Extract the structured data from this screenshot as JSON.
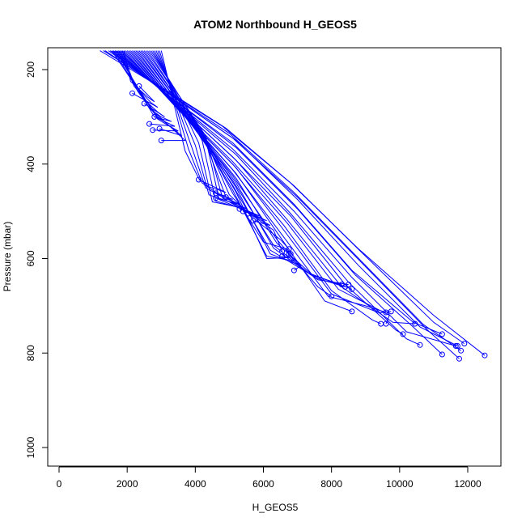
{
  "chart_data": {
    "type": "line",
    "title": "ATOM2 Northbound H_GEOS5",
    "xlabel": "H_GEOS5",
    "ylabel": "Pressure (mbar)",
    "xlim": [
      -300,
      13000
    ],
    "ylim": [
      1035,
      160
    ],
    "y_reversed": true,
    "x_ticks": [
      0,
      2000,
      4000,
      6000,
      8000,
      10000,
      12000
    ],
    "y_ticks": [
      200,
      400,
      600,
      800,
      1000
    ],
    "x_tick_labels": [
      "0",
      "2000",
      "4000",
      "6000",
      "8000",
      "10000",
      "12000"
    ],
    "y_tick_labels": [
      "200",
      "400",
      "600",
      "800",
      "1000"
    ],
    "grid": false,
    "legend": "none",
    "line_color": "#0000ff",
    "marker": "open-circle",
    "series": [
      {
        "x": [
          1200,
          2800,
          4800,
          6800,
          8800,
          11000,
          12500
        ],
        "y": [
          160,
          230,
          320,
          440,
          580,
          720,
          805
        ]
      },
      {
        "x": [
          1300,
          2900,
          4900,
          6900,
          8900,
          11000,
          11900
        ],
        "y": [
          160,
          232,
          324,
          446,
          588,
          735,
          780
        ]
      },
      {
        "x": [
          1350,
          3000,
          5000,
          6900,
          8800,
          10700,
          11800
        ],
        "y": [
          160,
          240,
          335,
          460,
          600,
          740,
          795
        ]
      },
      {
        "x": [
          1450,
          3100,
          5100,
          7000,
          8900,
          10800,
          11750
        ],
        "y": [
          160,
          245,
          345,
          470,
          610,
          750,
          812
        ]
      },
      {
        "x": [
          1500,
          3200,
          5200,
          7000,
          8800,
          10600,
          11700
        ],
        "y": [
          160,
          250,
          350,
          475,
          615,
          745,
          785
        ]
      },
      {
        "x": [
          1550,
          3200,
          5100,
          6900,
          8600,
          10400,
          11250
        ],
        "y": [
          160,
          255,
          355,
          485,
          625,
          735,
          760
        ]
      },
      {
        "x": [
          1600,
          3300,
          5200,
          7000,
          8700,
          10400,
          11250
        ],
        "y": [
          160,
          260,
          365,
          495,
          635,
          745,
          803
        ]
      },
      {
        "x": [
          1650,
          3300,
          5100,
          6900,
          8600,
          10200,
          11650
        ],
        "y": [
          160,
          262,
          368,
          500,
          640,
          755,
          785
        ]
      },
      {
        "x": [
          1700,
          3400,
          5200,
          6800,
          8500,
          10200,
          10600
        ],
        "y": [
          160,
          270,
          380,
          505,
          650,
          770,
          783
        ]
      },
      {
        "x": [
          1750,
          3400,
          5100,
          6800,
          8400,
          9900,
          10100
        ],
        "y": [
          160,
          272,
          385,
          510,
          655,
          752,
          760
        ]
      },
      {
        "x": [
          1800,
          3500,
          5200,
          6700,
          8300,
          9800,
          10450
        ],
        "y": [
          160,
          278,
          392,
          518,
          660,
          735,
          738
        ]
      },
      {
        "x": [
          1850,
          3500,
          5100,
          6700,
          8200,
          9700,
          9600
        ],
        "y": [
          160,
          282,
          395,
          525,
          665,
          720,
          738
        ]
      },
      {
        "x": [
          1900,
          3500,
          5100,
          6600,
          8000,
          9200,
          9450
        ],
        "y": [
          160,
          285,
          400,
          530,
          668,
          730,
          738
        ]
      },
      {
        "x": [
          1950,
          3600,
          5200,
          6600,
          8000,
          9400,
          9750
        ],
        "y": [
          160,
          290,
          408,
          540,
          675,
          715,
          712
        ]
      },
      {
        "x": [
          2000,
          3600,
          5100,
          6500,
          7900,
          9000,
          9600
        ],
        "y": [
          160,
          292,
          412,
          545,
          680,
          700,
          714
        ]
      },
      {
        "x": [
          2050,
          3700,
          5200,
          6500,
          7800,
          8600
        ],
        "y": [
          160,
          298,
          420,
          555,
          690,
          712
        ]
      },
      {
        "x": [
          2100,
          3700,
          5100,
          6400,
          7600,
          8000
        ],
        "y": [
          160,
          300,
          425,
          560,
          660,
          680
        ]
      },
      {
        "x": [
          2150,
          3800,
          5200,
          6400,
          7600,
          8500
        ],
        "y": [
          160,
          305,
          430,
          568,
          645,
          655
        ]
      },
      {
        "x": [
          2200,
          3800,
          5100,
          6300,
          7500,
          8400
        ],
        "y": [
          160,
          308,
          435,
          572,
          640,
          660
        ]
      },
      {
        "x": [
          2250,
          3900,
          5200,
          6300,
          7400,
          8300
        ],
        "y": [
          160,
          312,
          440,
          578,
          635,
          655
        ]
      },
      {
        "x": [
          2300,
          3900,
          5100,
          6200,
          7300,
          8600
        ],
        "y": [
          160,
          315,
          445,
          582,
          630,
          665
        ]
      },
      {
        "x": [
          2350,
          4000,
          5200,
          6200,
          7100,
          6900
        ],
        "y": [
          160,
          318,
          450,
          590,
          615,
          625
        ]
      },
      {
        "x": [
          2400,
          4000,
          5100,
          6100,
          6900,
          6750
        ],
        "y": [
          160,
          320,
          455,
          595,
          605,
          590
        ]
      },
      {
        "x": [
          2450,
          4100,
          5200,
          6100,
          6800,
          6550
        ],
        "y": [
          160,
          325,
          460,
          600,
          598,
          595
        ]
      },
      {
        "x": [
          2500,
          4100,
          5100,
          6000,
          6700,
          6800
        ],
        "y": [
          160,
          328,
          462,
          565,
          580,
          590
        ]
      },
      {
        "x": [
          2550,
          4200,
          5000,
          5800,
          6500,
          6750
        ],
        "y": [
          160,
          332,
          465,
          520,
          560,
          580
        ]
      },
      {
        "x": [
          2600,
          4200,
          4900,
          5700,
          6300,
          6550
        ],
        "y": [
          160,
          335,
          470,
          510,
          540,
          585
        ]
      },
      {
        "x": [
          2650,
          4300,
          4800,
          5600,
          6200,
          5700
        ],
        "y": [
          160,
          340,
          472,
          505,
          530,
          520
        ]
      },
      {
        "x": [
          2700,
          4300,
          4700,
          5500,
          6100,
          5550
        ],
        "y": [
          160,
          345,
          475,
          500,
          520,
          505
        ]
      },
      {
        "x": [
          2750,
          4200,
          4600,
          5400,
          5900,
          5400
        ],
        "y": [
          160,
          350,
          478,
          495,
          510,
          500
        ]
      },
      {
        "x": [
          2800,
          4100,
          4500,
          5200,
          5700,
          5300
        ],
        "y": [
          160,
          355,
          480,
          490,
          505,
          495
        ]
      },
      {
        "x": [
          2850,
          4000,
          4400,
          5000,
          5500,
          4900
        ],
        "y": [
          160,
          360,
          465,
          480,
          495,
          470
        ]
      },
      {
        "x": [
          2900,
          3900,
          4300,
          4800,
          5300,
          4600
        ],
        "y": [
          160,
          365,
          450,
          470,
          485,
          472
        ]
      },
      {
        "x": [
          2950,
          3800,
          4200,
          4600,
          5100,
          4600
        ],
        "y": [
          160,
          368,
          440,
          460,
          475,
          462
        ]
      },
      {
        "x": [
          3000,
          3700,
          4100,
          4400,
          4900,
          4100
        ],
        "y": [
          160,
          372,
          430,
          448,
          460,
          433
        ]
      },
      {
        "x": [
          1550,
          2200,
          2800,
          3400,
          3700,
          3000
        ],
        "y": [
          160,
          230,
          290,
          330,
          350,
          350
        ]
      },
      {
        "x": [
          1600,
          2300,
          2900,
          3300,
          3600,
          2950
        ],
        "y": [
          160,
          240,
          300,
          322,
          340,
          325
        ]
      },
      {
        "x": [
          1650,
          2400,
          2900,
          3200,
          3500,
          2750
        ],
        "y": [
          160,
          248,
          305,
          318,
          330,
          328
        ]
      },
      {
        "x": [
          1700,
          2400,
          2800,
          3100,
          3400,
          2650
        ],
        "y": [
          160,
          252,
          300,
          310,
          320,
          315
        ]
      },
      {
        "x": [
          1750,
          2300,
          2700,
          3000,
          3300,
          2800
        ],
        "y": [
          160,
          245,
          285,
          300,
          310,
          300
        ]
      },
      {
        "x": [
          1800,
          2200,
          2600,
          2900,
          3100,
          2500
        ],
        "y": [
          160,
          235,
          270,
          290,
          300,
          272
        ]
      },
      {
        "x": [
          1850,
          2200,
          2500,
          2700,
          2900,
          2150
        ],
        "y": [
          160,
          230,
          255,
          270,
          280,
          250
        ]
      },
      {
        "x": [
          1900,
          2100,
          2400,
          2600,
          2800,
          2350
        ],
        "y": [
          160,
          225,
          245,
          258,
          268,
          235
        ]
      }
    ]
  }
}
